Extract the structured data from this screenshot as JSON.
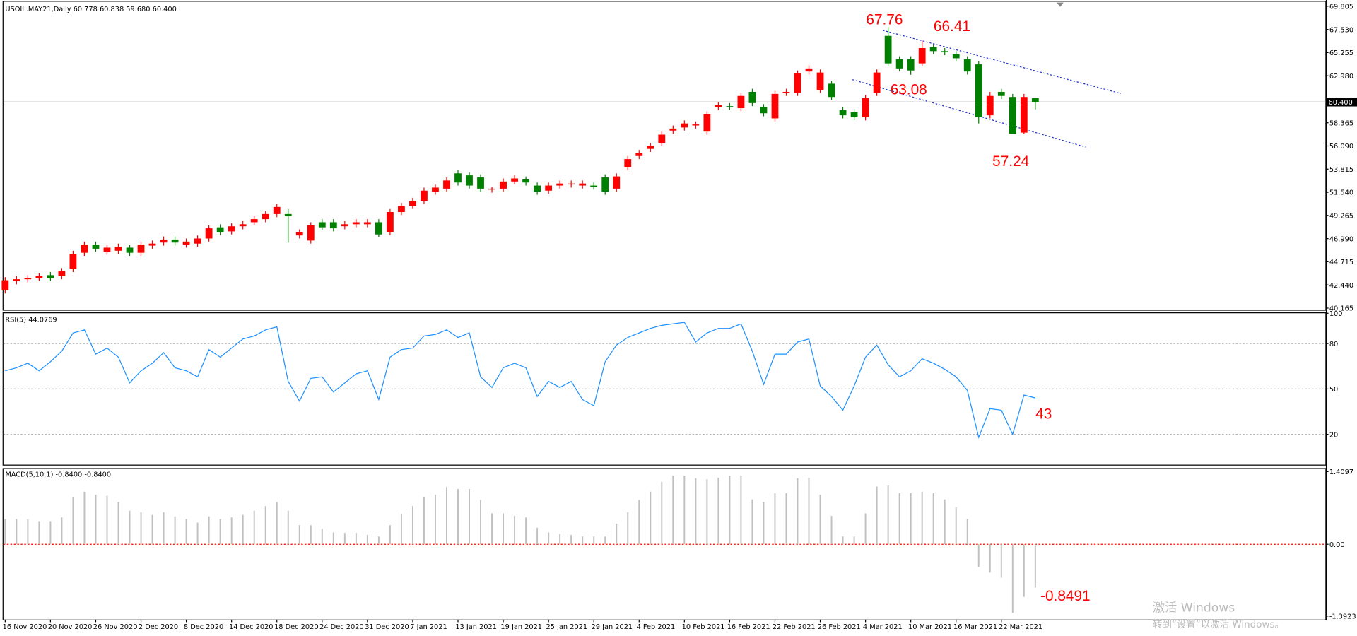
{
  "chart_data": [
    {
      "type": "candlestick",
      "title": "USOIL.MAY21,Daily  60.778 60.838 59.680 60.400",
      "up_color": "#ff0000",
      "down_color": "#008000",
      "ylim": [
        40.0,
        70.25
      ],
      "yticks": [
        69.805,
        {
          "value": 67.53,
          "label": "67.530"
        },
        65.255,
        {
          "value": 62.98,
          "label": "62.980"
        },
        58.365,
        {
          "value": 56.09,
          "label": "56.090"
        },
        53.815,
        {
          "value": 51.54,
          "label": "51.540"
        },
        49.265,
        {
          "value": 46.99,
          "label": "46.990"
        },
        44.715,
        {
          "value": 42.44,
          "label": "42.440"
        },
        40.165
      ],
      "last_price": {
        "value": 60.4,
        "label": "60.400"
      },
      "annotations": [
        67.76,
        66.41,
        63.08,
        57.24
      ],
      "open": [
        41.9,
        42.8,
        43.0,
        43.1,
        43.4,
        43.3,
        44.0,
        45.6,
        46.4,
        45.7,
        45.8,
        46.1,
        45.6,
        46.3,
        46.6,
        46.9,
        46.4,
        46.5,
        47.0,
        48.1,
        47.7,
        48.2,
        48.6,
        48.9,
        49.4,
        49.4,
        47.3,
        46.8,
        48.6,
        48.6,
        48.2,
        48.4,
        48.4,
        48.6,
        47.6,
        49.6,
        50.2,
        50.7,
        51.6,
        51.9,
        53.4,
        53.2,
        53.0,
        51.8,
        51.9,
        52.6,
        52.8,
        52.2,
        51.7,
        52.2,
        52.3,
        52.2,
        52.2,
        53.0,
        51.9,
        54.0,
        55.1,
        55.8,
        56.4,
        57.6,
        57.9,
        58.1,
        57.5,
        59.9,
        60.0,
        59.8,
        61.4,
        59.9,
        58.8,
        61.3,
        61.3,
        63.4,
        61.6,
        62.2,
        59.6,
        59.4,
        58.9,
        61.3,
        66.9,
        64.6,
        64.6,
        64.2,
        65.8,
        65.4,
        65.1,
        64.6,
        64.1,
        59.1,
        61.4,
        60.9,
        57.4,
        60.778
      ],
      "high": [
        43.2,
        43.3,
        43.4,
        43.6,
        43.7,
        44.1,
        45.8,
        46.7,
        46.7,
        46.4,
        46.5,
        46.4,
        46.7,
        46.8,
        47.2,
        47.2,
        47.0,
        47.3,
        48.3,
        48.4,
        48.5,
        48.7,
        49.2,
        49.7,
        50.4,
        49.9,
        47.9,
        48.6,
        48.9,
        48.9,
        48.7,
        48.9,
        48.9,
        48.9,
        49.9,
        50.5,
        51.0,
        52.0,
        52.3,
        53.0,
        53.7,
        53.5,
        53.3,
        52.1,
        52.9,
        53.2,
        53.1,
        52.5,
        52.5,
        52.7,
        52.7,
        52.7,
        52.5,
        53.3,
        53.4,
        55.1,
        55.7,
        56.4,
        57.5,
        58.1,
        58.6,
        58.5,
        59.5,
        60.4,
        60.3,
        61.3,
        61.7,
        60.2,
        61.5,
        61.7,
        63.5,
        64.0,
        63.6,
        62.5,
        59.9,
        59.7,
        61.1,
        63.6,
        67.76,
        64.9,
        64.9,
        66.41,
        66.1,
        65.7,
        65.4,
        64.9,
        64.4,
        61.4,
        61.7,
        61.2,
        61.2,
        60.838
      ],
      "low": [
        41.6,
        42.5,
        42.7,
        42.8,
        42.8,
        43.0,
        43.7,
        45.3,
        45.7,
        45.4,
        45.5,
        45.3,
        45.3,
        46.0,
        46.3,
        46.3,
        46.1,
        46.2,
        46.7,
        47.3,
        47.4,
        47.9,
        48.3,
        48.6,
        49.1,
        46.6,
        47.0,
        46.5,
        47.8,
        47.7,
        47.9,
        48.1,
        48.1,
        47.1,
        47.3,
        49.3,
        49.9,
        50.4,
        51.3,
        51.6,
        52.2,
        51.9,
        51.6,
        51.5,
        51.6,
        52.3,
        52.2,
        51.3,
        51.4,
        51.9,
        52.0,
        51.9,
        51.8,
        51.3,
        51.6,
        53.7,
        54.8,
        55.5,
        56.1,
        57.3,
        57.6,
        57.8,
        57.2,
        59.6,
        59.6,
        59.5,
        60.0,
        59.0,
        58.5,
        61.0,
        61.0,
        63.1,
        61.3,
        60.6,
        58.8,
        58.6,
        58.6,
        61.0,
        63.9,
        63.4,
        63.08,
        63.9,
        65.1,
        65.0,
        64.4,
        63.1,
        58.3,
        58.8,
        60.7,
        57.24,
        57.3,
        59.68
      ],
      "close": [
        42.9,
        43.0,
        43.1,
        43.3,
        43.1,
        43.8,
        45.5,
        46.4,
        46.0,
        46.1,
        46.2,
        45.6,
        46.4,
        46.5,
        46.9,
        46.6,
        46.7,
        47.0,
        48.0,
        47.6,
        48.2,
        48.4,
        48.9,
        49.4,
        50.1,
        49.2,
        47.6,
        48.3,
        48.1,
        48.0,
        48.4,
        48.6,
        48.6,
        47.4,
        49.6,
        50.2,
        50.7,
        51.7,
        52.0,
        52.7,
        52.5,
        52.2,
        51.9,
        51.9,
        52.6,
        52.9,
        52.5,
        51.6,
        52.2,
        52.4,
        52.4,
        52.4,
        52.1,
        51.6,
        53.1,
        54.8,
        55.4,
        56.1,
        57.2,
        57.8,
        58.3,
        58.2,
        59.2,
        60.1,
        59.9,
        61.0,
        60.3,
        59.3,
        61.2,
        61.4,
        63.2,
        63.7,
        63.3,
        60.9,
        59.1,
        58.9,
        60.8,
        63.3,
        64.2,
        63.7,
        63.5,
        65.7,
        65.4,
        65.3,
        64.7,
        63.4,
        58.9,
        61.0,
        61.0,
        57.3,
        60.9,
        60.4
      ]
    },
    {
      "type": "line",
      "title": "RSI(5) 44.0769",
      "color": "#1e90ff",
      "ylim": [
        0,
        100
      ],
      "yticks": [
        20,
        50,
        80,
        100
      ],
      "grid": true,
      "annotations": [
        43
      ],
      "values": [
        62,
        64,
        67,
        62,
        68,
        75,
        87,
        89,
        73,
        77,
        71,
        54,
        62,
        67,
        74,
        64,
        62,
        58,
        76,
        71,
        77,
        83,
        85,
        89,
        91,
        55,
        42,
        57,
        58,
        48,
        54,
        60,
        62,
        43,
        71,
        76,
        77,
        85,
        86,
        89,
        84,
        87,
        58,
        51,
        64,
        67,
        64,
        45,
        55,
        51,
        55,
        43,
        39,
        68,
        79,
        84,
        87,
        90,
        92,
        93,
        94,
        81,
        87,
        90,
        90,
        93,
        75,
        53,
        73,
        73,
        81,
        83,
        52,
        45,
        36,
        52,
        71,
        79,
        66,
        58,
        62,
        70,
        67,
        63,
        58,
        49,
        18,
        37,
        36,
        20,
        46,
        44.0769
      ]
    },
    {
      "type": "bar",
      "title": "MACD(5,10,1) -0.8400 -0.8400",
      "color": "#c0c0c0",
      "ylim": [
        -1.46,
        1.46
      ],
      "yticks": [
        1.4097,
        {
          "value": 0,
          "label": "0.00"
        },
        -1.3923
      ],
      "annotations": [
        -0.8491
      ],
      "categories": [
        "16 Nov 2020",
        null,
        null,
        null,
        "20 Nov 2020",
        null,
        null,
        null,
        "26 Nov 2020",
        null,
        null,
        null,
        "2 Dec 2020",
        null,
        null,
        null,
        "8 Dec 2020",
        null,
        null,
        null,
        "14 Dec 2020",
        null,
        null,
        null,
        "18 Dec 2020",
        null,
        null,
        null,
        "24 Dec 2020",
        null,
        null,
        null,
        "31 Dec 2020",
        null,
        null,
        null,
        "7 Jan 2021",
        null,
        null,
        null,
        "13 Jan 2021",
        null,
        null,
        null,
        "19 Jan 2021",
        null,
        null,
        null,
        "25 Jan 2021",
        null,
        null,
        null,
        "29 Jan 2021",
        null,
        null,
        null,
        "4 Feb 2021",
        null,
        null,
        null,
        "10 Feb 2021",
        null,
        null,
        null,
        "16 Feb 2021",
        null,
        null,
        null,
        "22 Feb 2021",
        null,
        null,
        null,
        "26 Feb 2021",
        null,
        null,
        null,
        "4 Mar 2021",
        null,
        null,
        null,
        "10 Mar 2021",
        null,
        null,
        null,
        "16 Mar 2021",
        null,
        null,
        null,
        "22 Mar 2021",
        null,
        null,
        null
      ],
      "values": [
        0.49,
        0.49,
        0.49,
        0.45,
        0.45,
        0.52,
        0.91,
        1.02,
        0.96,
        0.94,
        0.82,
        0.65,
        0.62,
        0.57,
        0.62,
        0.54,
        0.49,
        0.42,
        0.54,
        0.49,
        0.52,
        0.57,
        0.65,
        0.74,
        0.82,
        0.65,
        0.37,
        0.37,
        0.3,
        0.23,
        0.22,
        0.22,
        0.18,
        0.15,
        0.37,
        0.59,
        0.74,
        0.91,
        0.96,
        1.11,
        1.07,
        1.07,
        0.86,
        0.6,
        0.6,
        0.55,
        0.52,
        0.32,
        0.23,
        0.2,
        0.18,
        0.15,
        0.15,
        0.15,
        0.4,
        0.62,
        0.86,
        1.02,
        1.21,
        1.33,
        1.33,
        1.28,
        1.26,
        1.29,
        1.33,
        1.33,
        0.87,
        0.82,
        0.99,
        0.99,
        1.28,
        1.29,
        0.96,
        0.55,
        0.15,
        0.15,
        0.6,
        1.12,
        1.14,
        0.99,
        0.99,
        1.02,
        0.99,
        0.87,
        0.72,
        0.49,
        -0.44,
        -0.55,
        -0.65,
        -1.33,
        -1.02,
        -0.84
      ]
    }
  ],
  "watermark": [
    "激活 Windows",
    "转到“设置”以激活 Windows。"
  ]
}
